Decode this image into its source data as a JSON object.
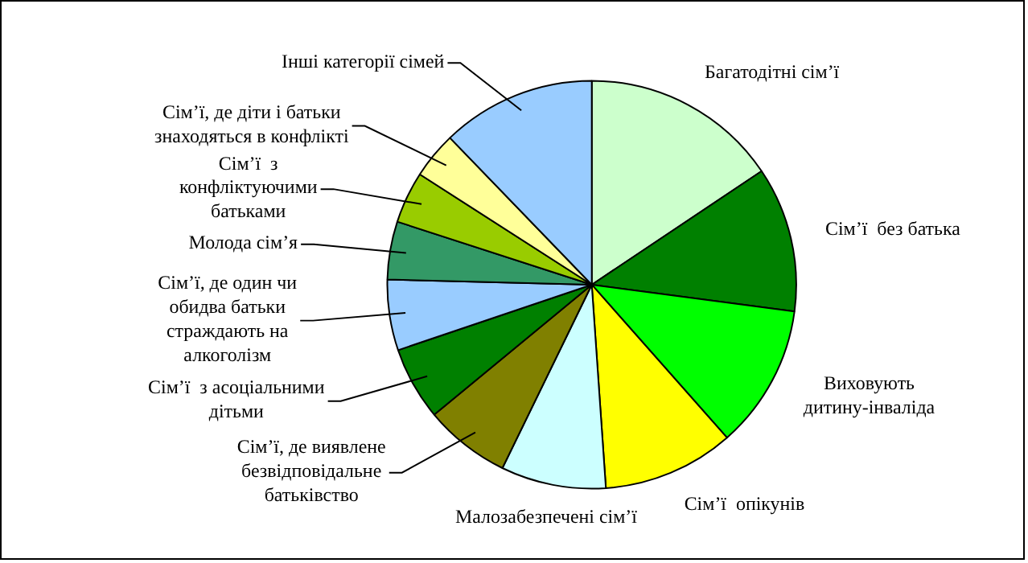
{
  "chart_data": {
    "type": "pie",
    "categories": [
      "Багатодітні сім’ї",
      "Сім’ї  без батька",
      "Виховують дитину-інваліда",
      "Сім’ї  опікунів",
      "Малозабезпечені сім’ї",
      "Сім’ї, де виявлене безвідповідальне батьківство",
      "Сім’ї  з асоціальними дітьми",
      "Сім’ї, де один чи обидва батьки страждають на алкоголізм",
      "Молода сім’я",
      "Сім’ї  з конфліктуючими батьками",
      "Сім’ї, де діти і батьки знаходяться в конфлікті",
      "Інші категорії сімей"
    ],
    "values": [
      15.6,
      11.5,
      11.4,
      10.4,
      8.3,
      6.8,
      5.8,
      5.6,
      4.6,
      4.1,
      3.7,
      12.2
    ],
    "colors": [
      "#ccffcc",
      "#008000",
      "#00ff00",
      "#ffff00",
      "#ccffff",
      "#808000",
      "#008000",
      "#99ccff",
      "#339966",
      "#99cc00",
      "#ffff99",
      "#99ccff"
    ],
    "legend": false
  }
}
